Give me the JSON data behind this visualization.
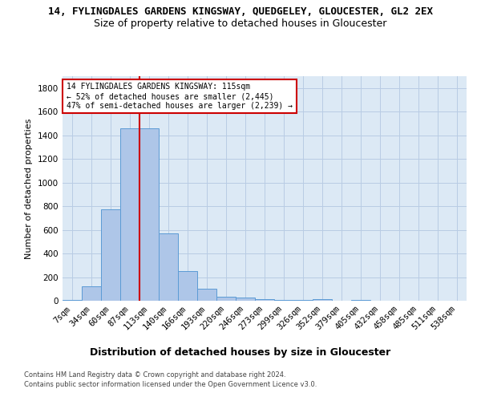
{
  "suptitle": "14, FYLINGDALES GARDENS KINGSWAY, QUEDGELEY, GLOUCESTER, GL2 2EX",
  "title": "Size of property relative to detached houses in Gloucester",
  "xlabel": "Distribution of detached houses by size in Gloucester",
  "ylabel": "Number of detached properties",
  "categories": [
    "7sqm",
    "34sqm",
    "60sqm",
    "87sqm",
    "113sqm",
    "140sqm",
    "166sqm",
    "193sqm",
    "220sqm",
    "246sqm",
    "273sqm",
    "299sqm",
    "326sqm",
    "352sqm",
    "379sqm",
    "405sqm",
    "432sqm",
    "458sqm",
    "485sqm",
    "511sqm",
    "538sqm"
  ],
  "values": [
    5,
    120,
    775,
    1460,
    1460,
    570,
    248,
    103,
    33,
    25,
    15,
    8,
    5,
    15,
    0,
    10,
    0,
    0,
    0,
    0,
    0
  ],
  "bar_color": "#aec6e8",
  "bar_edge_color": "#5b9bd5",
  "highlight_bar_index": 4,
  "highlight_color": "#cc0000",
  "annotation_text": "14 FYLINGDALES GARDENS KINGSWAY: 115sqm\n← 52% of detached houses are smaller (2,445)\n47% of semi-detached houses are larger (2,239) →",
  "annotation_box_color": "#ffffff",
  "annotation_border_color": "#cc0000",
  "ylim": [
    0,
    1900
  ],
  "yticks": [
    0,
    200,
    400,
    600,
    800,
    1000,
    1200,
    1400,
    1600,
    1800
  ],
  "footer_line1": "Contains HM Land Registry data © Crown copyright and database right 2024.",
  "footer_line2": "Contains public sector information licensed under the Open Government Licence v3.0.",
  "background_color": "#ffffff",
  "grid_color": "#b8cce4",
  "ax_bg_color": "#dce9f5",
  "suptitle_fontsize": 9,
  "title_fontsize": 9,
  "xlabel_fontsize": 9,
  "ylabel_fontsize": 8,
  "tick_fontsize": 7.5,
  "footer_fontsize": 6,
  "annotation_fontsize": 7
}
